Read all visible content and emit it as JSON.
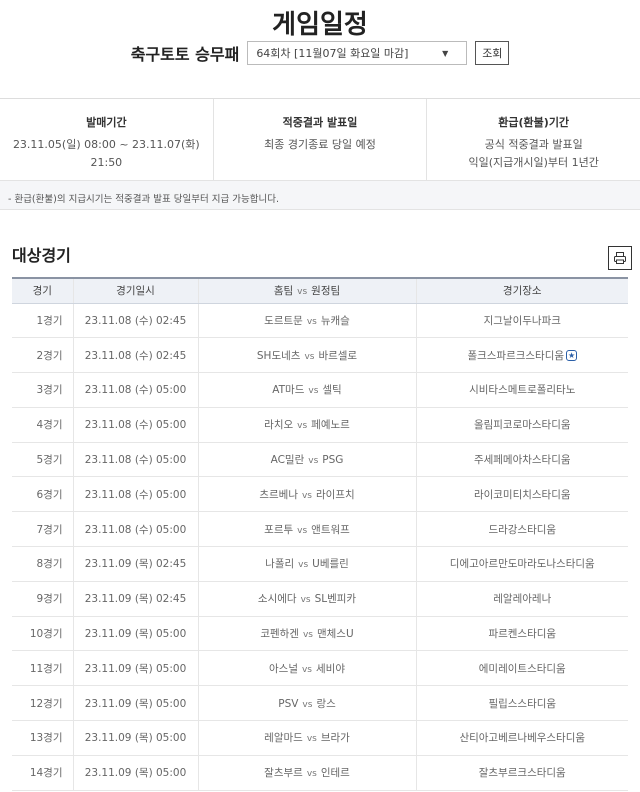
{
  "header": {
    "title": "게임일정",
    "game_label": "축구토토 승무패",
    "round_select": "64회차 [11월07일 화요일 마감]",
    "search_button": "조회"
  },
  "info": [
    {
      "heading": "발매기간",
      "lines": [
        "23.11.05(일) 08:00 ~ 23.11.07(화) 21:50"
      ]
    },
    {
      "heading": "적중결과 발표일",
      "lines": [
        "최종 경기종료 당일 예정"
      ]
    },
    {
      "heading": "환급(환불)기간",
      "lines": [
        "공식 적중결과 발표일",
        "익일(지급개시일)부터 1년간"
      ]
    }
  ],
  "note": "- 환급(환불)의 지급시기는 적중결과 발표 당일부터 지급 가능합니다.",
  "section_title": "대상경기",
  "print_icon": "printer-icon",
  "table": {
    "headers": {
      "no": "경기",
      "datetime": "경기일시",
      "home": "홈팀",
      "vs": "vs",
      "away": "원정팀",
      "venue": "경기장소"
    },
    "rows": [
      {
        "no": "1경기",
        "datetime": "23.11.08 (수) 02:45",
        "home": "도르트문",
        "away": "뉴캐슬",
        "venue": "지그날이두나파크"
      },
      {
        "no": "2경기",
        "datetime": "23.11.08 (수) 02:45",
        "home": "SH도네츠",
        "away": "바르셀로",
        "venue": "폴크스파르크스타디움",
        "star": true
      },
      {
        "no": "3경기",
        "datetime": "23.11.08 (수) 05:00",
        "home": "AT마드",
        "away": "셀틱",
        "venue": "시비타스메트로폴리타노"
      },
      {
        "no": "4경기",
        "datetime": "23.11.08 (수) 05:00",
        "home": "라치오",
        "away": "페예노르",
        "venue": "올림피코로마스타디움"
      },
      {
        "no": "5경기",
        "datetime": "23.11.08 (수) 05:00",
        "home": "AC밀란",
        "away": "PSG",
        "venue": "주세페메아차스타디움"
      },
      {
        "no": "6경기",
        "datetime": "23.11.08 (수) 05:00",
        "home": "츠르베나",
        "away": "라이프치",
        "venue": "라이코미티치스타디움"
      },
      {
        "no": "7경기",
        "datetime": "23.11.08 (수) 05:00",
        "home": "포르투",
        "away": "앤트워프",
        "venue": "드라강스타디움"
      },
      {
        "no": "8경기",
        "datetime": "23.11.09 (목) 02:45",
        "home": "나폴리",
        "away": "U베를린",
        "venue": "디에고아르만도마라도나스타디움"
      },
      {
        "no": "9경기",
        "datetime": "23.11.09 (목) 02:45",
        "home": "소시에다",
        "away": "SL벤피카",
        "venue": "레알레아레나"
      },
      {
        "no": "10경기",
        "datetime": "23.11.09 (목) 05:00",
        "home": "코펜하겐",
        "away": "맨체스U",
        "venue": "파르켄스타디움"
      },
      {
        "no": "11경기",
        "datetime": "23.11.09 (목) 05:00",
        "home": "아스널",
        "away": "세비야",
        "venue": "에미레이트스타디움"
      },
      {
        "no": "12경기",
        "datetime": "23.11.09 (목) 05:00",
        "home": "PSV",
        "away": "랑스",
        "venue": "필립스스타디움"
      },
      {
        "no": "13경기",
        "datetime": "23.11.09 (목) 05:00",
        "home": "레알마드",
        "away": "브라가",
        "venue": "산티아고베르나베우스타디움"
      },
      {
        "no": "14경기",
        "datetime": "23.11.09 (목) 05:00",
        "home": "잘츠부르",
        "away": "인테르",
        "venue": "잘츠부르크스타디움"
      }
    ]
  },
  "colors": {
    "accent": "#2b5fa8",
    "header_bg": "#eef1f6"
  }
}
